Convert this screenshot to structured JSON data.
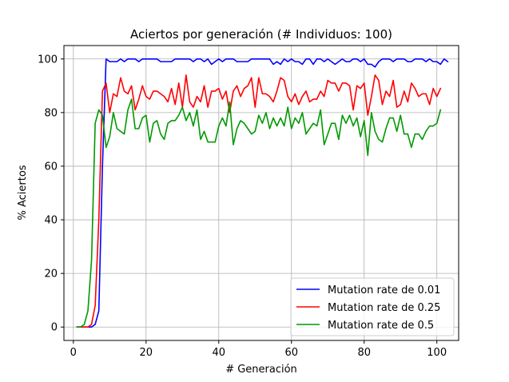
{
  "chart_data": {
    "type": "line",
    "title": "Aciertos por generación (# Individuos: 100)",
    "xlabel": "# Generación",
    "ylabel": "% Aciertos",
    "xlim": [
      -2.6,
      106
    ],
    "ylim": [
      -5,
      105
    ],
    "xticks": [
      0,
      20,
      40,
      60,
      80,
      100
    ],
    "yticks": [
      0,
      20,
      40,
      60,
      80,
      100
    ],
    "grid": true,
    "legend_position": "lower-right",
    "x_start": 1,
    "series": [
      {
        "name": "Mutation rate de 0.01",
        "color": "#0000ff",
        "values": [
          0,
          0,
          0,
          0,
          0,
          1,
          6,
          60,
          100,
          99,
          99,
          99,
          100,
          99,
          100,
          100,
          100,
          99,
          100,
          100,
          100,
          100,
          100,
          99,
          99,
          99,
          99,
          100,
          100,
          100,
          100,
          100,
          99,
          100,
          100,
          99,
          100,
          98,
          99,
          100,
          99,
          100,
          100,
          100,
          99,
          99,
          99,
          99,
          100,
          100,
          100,
          100,
          100,
          100,
          98,
          99,
          98,
          100,
          99,
          100,
          99,
          99,
          98,
          100,
          100,
          98,
          100,
          100,
          99,
          100,
          99,
          98,
          99,
          100,
          99,
          99,
          100,
          100,
          99,
          100,
          98,
          98,
          97,
          99,
          100,
          100,
          100,
          99,
          100,
          100,
          100,
          99,
          99,
          100,
          100,
          100,
          99,
          100,
          99,
          99,
          98,
          100,
          99
        ]
      },
      {
        "name": "Mutation rate de 0.25",
        "color": "#ff0000",
        "values": [
          0,
          0,
          0,
          0,
          1,
          8,
          40,
          88,
          91,
          80,
          87,
          86,
          93,
          88,
          87,
          90,
          81,
          85,
          90,
          86,
          85,
          88,
          88,
          87,
          86,
          84,
          89,
          83,
          91,
          82,
          94,
          84,
          82,
          86,
          84,
          90,
          82,
          88,
          88,
          89,
          85,
          88,
          80,
          88,
          90,
          86,
          89,
          90,
          93,
          82,
          93,
          87,
          87,
          86,
          84,
          88,
          93,
          92,
          86,
          84,
          87,
          83,
          86,
          88,
          84,
          85,
          85,
          88,
          86,
          92,
          91,
          91,
          88,
          91,
          91,
          90,
          81,
          90,
          89,
          91,
          79,
          86,
          94,
          92,
          83,
          88,
          86,
          92,
          82,
          83,
          88,
          84,
          91,
          89,
          86,
          87,
          87,
          83,
          89,
          86,
          89
        ]
      },
      {
        "name": "Mutation rate de 0.5",
        "color": "#009900",
        "values": [
          0,
          0,
          1,
          6,
          25,
          76,
          81,
          79,
          67,
          71,
          80,
          74,
          73,
          72,
          81,
          85,
          74,
          74,
          78,
          79,
          69,
          76,
          77,
          72,
          70,
          76,
          77,
          77,
          79,
          82,
          77,
          80,
          75,
          81,
          70,
          73,
          69,
          69,
          69,
          75,
          78,
          75,
          84,
          68,
          74,
          77,
          76,
          74,
          72,
          73,
          79,
          76,
          80,
          74,
          78,
          75,
          78,
          75,
          82,
          74,
          78,
          76,
          80,
          72,
          74,
          76,
          75,
          81,
          68,
          72,
          76,
          76,
          70,
          79,
          76,
          79,
          75,
          78,
          71,
          77,
          64,
          80,
          73,
          70,
          69,
          74,
          78,
          78,
          73,
          79,
          72,
          72,
          67,
          72,
          72,
          70,
          73,
          75,
          75,
          76,
          81
        ]
      }
    ]
  }
}
